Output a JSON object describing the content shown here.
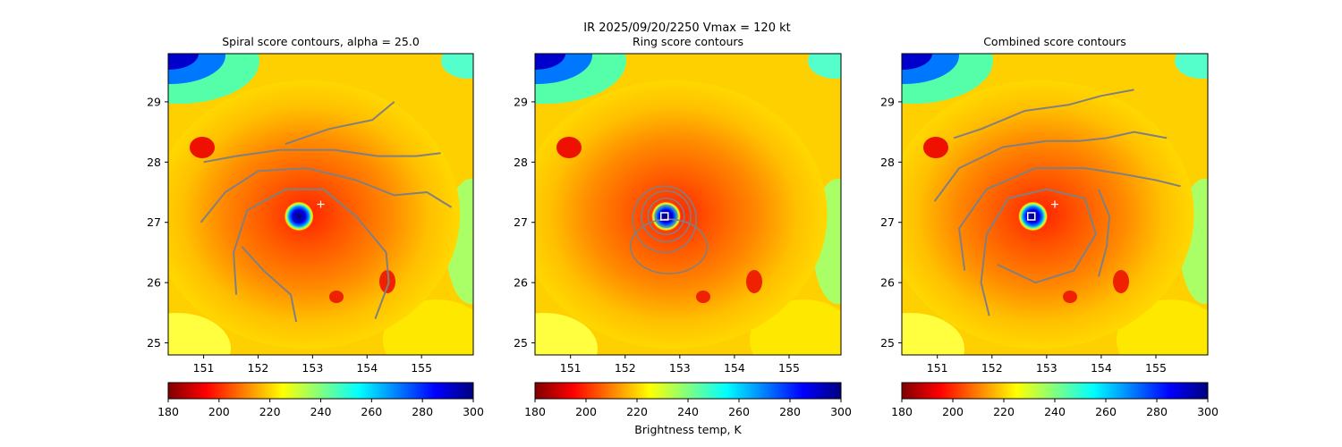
{
  "suptitle_line1": "IR  2025/09/20/2250    Vmax = 120 kt",
  "colorbar_label": "Brightness temp, K",
  "colormap": {
    "name": "jet_r",
    "stops": [
      "#7f0000",
      "#ff0000",
      "#ff8000",
      "#ffff00",
      "#80ff80",
      "#00ffff",
      "#0080ff",
      "#0000ff",
      "#00007f"
    ]
  },
  "contour_color": "#808080",
  "marker_color": "#ffffff",
  "chart_data": [
    {
      "type": "heatmap",
      "title": "Spiral score contours, alpha = 25.0",
      "xlim": [
        150.35,
        155.95
      ],
      "ylim": [
        24.8,
        29.8
      ],
      "x_ticks": [
        "151",
        "152",
        "153",
        "154",
        "155"
      ],
      "y_ticks": [
        "25",
        "26",
        "27",
        "28",
        "29"
      ],
      "colorbar": {
        "range": [
          180,
          300
        ],
        "ticks": [
          "180",
          "200",
          "220",
          "240",
          "260",
          "280",
          "300"
        ]
      },
      "eye_center": [
        152.75,
        27.1
      ],
      "markers": [
        {
          "shape": "plus",
          "lon": 153.15,
          "lat": 27.3
        }
      ],
      "contour_lines": [
        [
          [
            150.95,
            27.0
          ],
          [
            151.4,
            27.5
          ],
          [
            152.0,
            27.85
          ],
          [
            152.9,
            27.9
          ],
          [
            153.8,
            27.7
          ],
          [
            154.5,
            27.45
          ],
          [
            155.1,
            27.5
          ],
          [
            155.55,
            27.25
          ]
        ],
        [
          [
            151.0,
            28.0
          ],
          [
            151.6,
            28.1
          ],
          [
            152.4,
            28.2
          ],
          [
            153.4,
            28.2
          ],
          [
            154.2,
            28.1
          ],
          [
            154.9,
            28.1
          ],
          [
            155.35,
            28.15
          ]
        ],
        [
          [
            151.6,
            25.8
          ],
          [
            151.55,
            26.5
          ],
          [
            151.8,
            27.2
          ],
          [
            152.5,
            27.55
          ],
          [
            153.2,
            27.55
          ],
          [
            153.8,
            27.1
          ],
          [
            154.35,
            26.5
          ],
          [
            154.4,
            26.0
          ],
          [
            154.15,
            25.4
          ]
        ],
        [
          [
            152.5,
            28.3
          ],
          [
            153.3,
            28.55
          ],
          [
            154.1,
            28.7
          ],
          [
            154.5,
            29.0
          ]
        ],
        [
          [
            152.7,
            25.35
          ],
          [
            152.6,
            25.8
          ],
          [
            152.1,
            26.2
          ],
          [
            151.7,
            26.6
          ]
        ]
      ]
    },
    {
      "type": "heatmap",
      "title": "Ring score contours",
      "xlim": [
        150.35,
        155.95
      ],
      "ylim": [
        24.8,
        29.8
      ],
      "x_ticks": [
        "151",
        "152",
        "153",
        "154",
        "155"
      ],
      "y_ticks": [
        "25",
        "26",
        "27",
        "28",
        "29"
      ],
      "colorbar": {
        "range": [
          180,
          300
        ],
        "ticks": [
          "180",
          "200",
          "220",
          "240",
          "260",
          "280",
          "300"
        ]
      },
      "eye_center": [
        152.75,
        27.1
      ],
      "markers": [
        {
          "shape": "square",
          "lon": 152.72,
          "lat": 27.1
        }
      ],
      "contour_rings": [
        [
          152.75,
          27.1,
          0.2,
          0.18
        ],
        [
          152.75,
          27.1,
          0.33,
          0.3
        ],
        [
          152.75,
          27.1,
          0.45,
          0.42
        ],
        [
          152.72,
          27.05,
          0.58,
          0.55
        ],
        [
          152.8,
          26.6,
          0.7,
          0.45
        ]
      ]
    },
    {
      "type": "heatmap",
      "title": "Combined score contours",
      "xlim": [
        150.35,
        155.95
      ],
      "ylim": [
        24.8,
        29.8
      ],
      "x_ticks": [
        "151",
        "152",
        "153",
        "154",
        "155"
      ],
      "y_ticks": [
        "25",
        "26",
        "27",
        "28",
        "29"
      ],
      "colorbar": {
        "range": [
          180,
          300
        ],
        "ticks": [
          "180",
          "200",
          "220",
          "240",
          "260",
          "280",
          "300"
        ]
      },
      "eye_center": [
        152.75,
        27.1
      ],
      "markers": [
        {
          "shape": "plus",
          "lon": 153.15,
          "lat": 27.3
        },
        {
          "shape": "square",
          "lon": 152.72,
          "lat": 27.1
        }
      ],
      "contour_lines": [
        [
          [
            150.95,
            27.35
          ],
          [
            151.4,
            27.9
          ],
          [
            152.2,
            28.25
          ],
          [
            153.0,
            28.35
          ],
          [
            153.6,
            28.35
          ],
          [
            154.1,
            28.4
          ],
          [
            154.6,
            28.5
          ],
          [
            155.2,
            28.4
          ]
        ],
        [
          [
            151.3,
            28.4
          ],
          [
            151.8,
            28.55
          ],
          [
            152.6,
            28.85
          ],
          [
            153.4,
            28.95
          ],
          [
            154.0,
            29.1
          ],
          [
            154.6,
            29.2
          ]
        ],
        [
          [
            151.5,
            26.2
          ],
          [
            151.4,
            26.9
          ],
          [
            151.9,
            27.55
          ],
          [
            152.8,
            27.9
          ],
          [
            153.7,
            27.9
          ],
          [
            154.4,
            27.8
          ],
          [
            155.0,
            27.7
          ],
          [
            155.45,
            27.6
          ]
        ],
        [
          [
            151.95,
            25.45
          ],
          [
            151.8,
            26.0
          ],
          [
            151.9,
            26.8
          ],
          [
            152.3,
            27.4
          ],
          [
            153.0,
            27.55
          ],
          [
            153.7,
            27.4
          ],
          [
            153.9,
            26.8
          ],
          [
            153.5,
            26.2
          ],
          [
            152.8,
            26.0
          ],
          [
            152.1,
            26.3
          ]
        ],
        [
          [
            153.95,
            26.1
          ],
          [
            154.1,
            26.6
          ],
          [
            154.15,
            27.1
          ],
          [
            153.95,
            27.55
          ]
        ]
      ]
    }
  ]
}
